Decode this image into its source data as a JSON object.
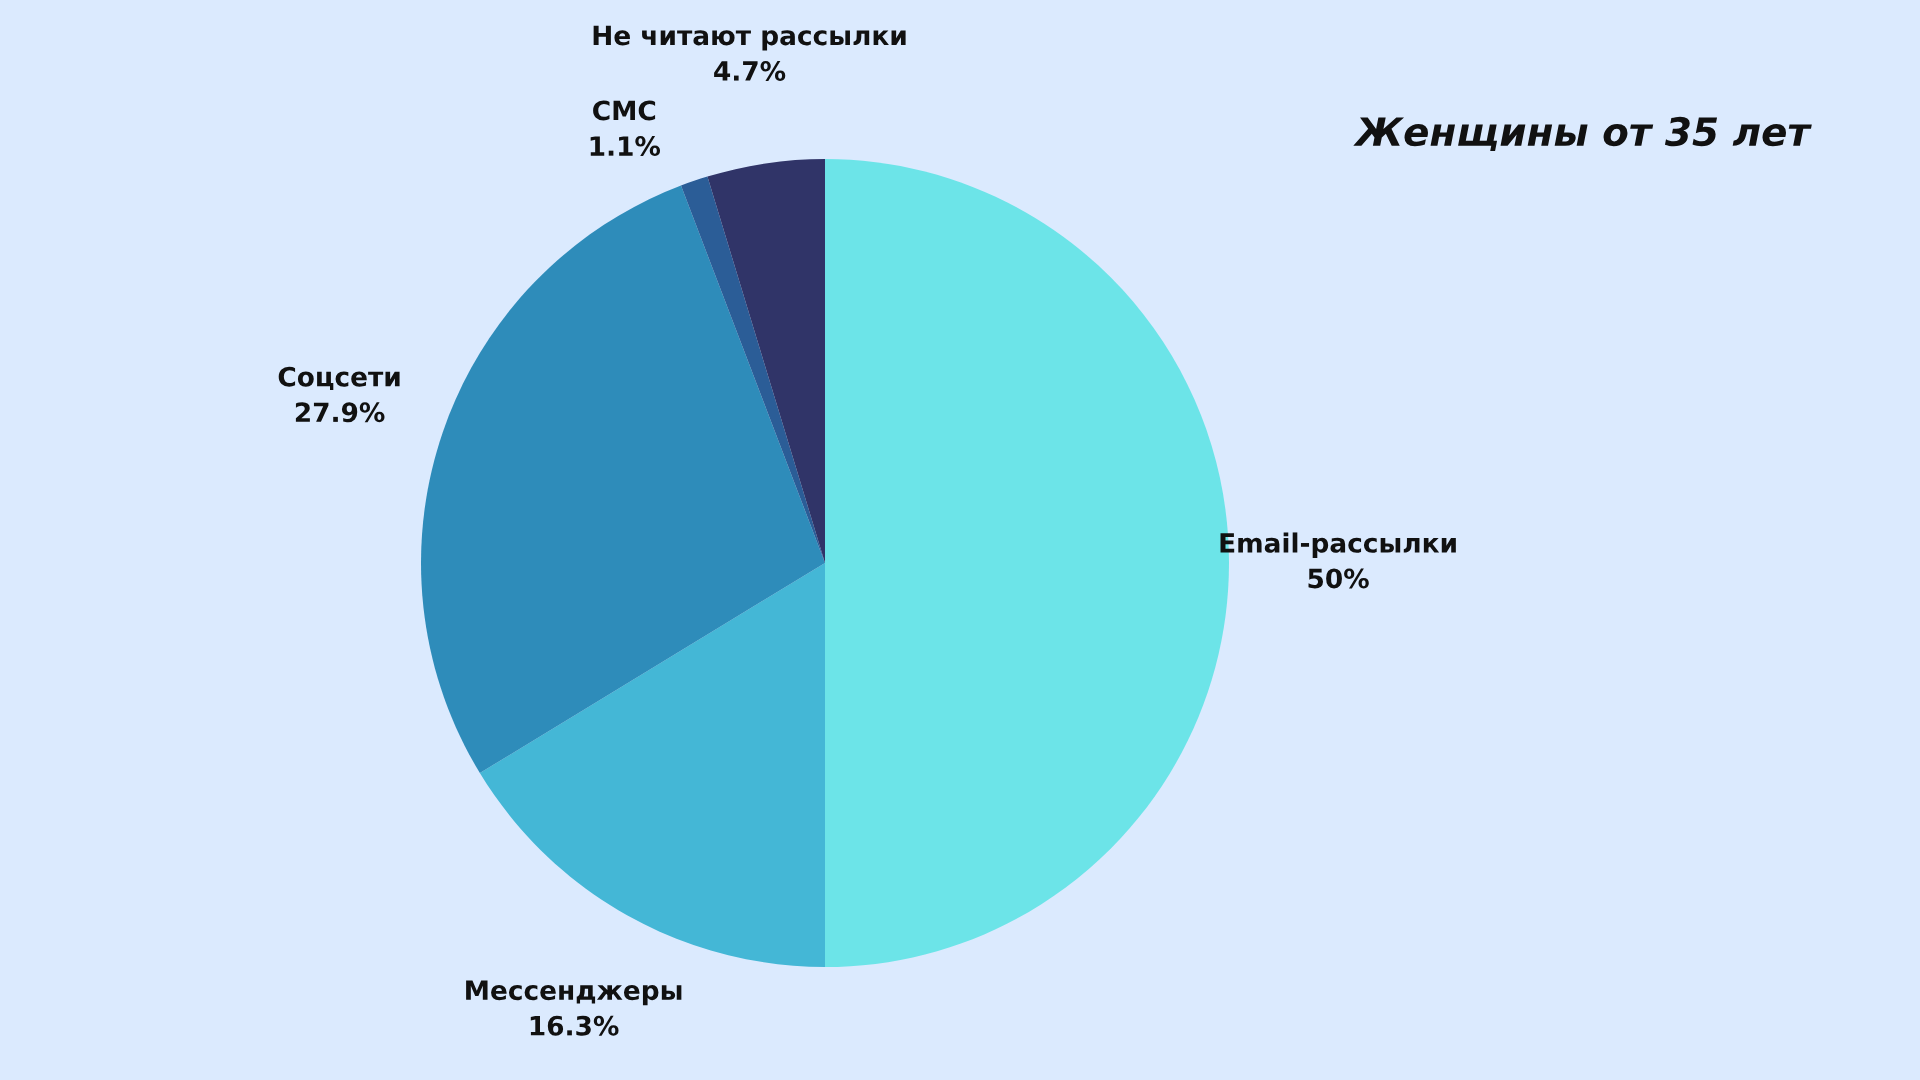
{
  "chart_data": {
    "type": "pie",
    "title": "Женщины от 35 лет",
    "categories": [
      "Email-рассылки",
      "Мессенджеры",
      "Соцсети",
      "СМС",
      "Не читают рассылки"
    ],
    "values": [
      50,
      16.3,
      27.9,
      1.1,
      4.7
    ],
    "value_labels": [
      "50%",
      "16.3%",
      "27.9%",
      "1.1%",
      "4.7%"
    ],
    "colors": [
      "#6ce4e8",
      "#44b7d6",
      "#2e8cba",
      "#2b5d97",
      "#303468"
    ]
  }
}
